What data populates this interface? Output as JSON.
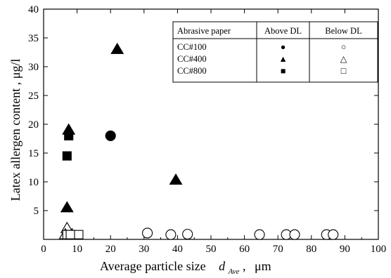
{
  "chart_data": {
    "type": "scatter",
    "title": "",
    "xlabel": "Average particle size",
    "xlabel_symbol": "d",
    "xlabel_subscript": "Ave",
    "xlabel_unit": "μm",
    "ylabel": "Latex allergen content , μg/l",
    "xlim": [
      0,
      100
    ],
    "ylim": [
      0,
      40
    ],
    "x_ticks": [
      0,
      10,
      20,
      30,
      40,
      50,
      60,
      70,
      80,
      90,
      100
    ],
    "y_ticks": [
      5,
      10,
      15,
      20,
      25,
      30,
      35,
      40
    ],
    "grid": false,
    "legend": {
      "placement": "top-right",
      "headers": [
        "Abrasive paper",
        "Above DL",
        "Below DL"
      ],
      "rows": [
        {
          "label": "CC#100",
          "above_symbol": "●",
          "below_symbol": "○"
        },
        {
          "label": "CC#400",
          "above_symbol": "▲",
          "below_symbol": "△"
        },
        {
          "label": "CC#800",
          "above_symbol": "■",
          "below_symbol": "□"
        }
      ]
    },
    "series": [
      {
        "name": "CC#100 Above DL",
        "marker": "circle",
        "filled": true,
        "points": [
          [
            20,
            18
          ]
        ]
      },
      {
        "name": "CC#400 Above DL",
        "marker": "triangle",
        "filled": true,
        "points": [
          [
            22,
            33
          ],
          [
            7.5,
            19
          ],
          [
            7,
            5.5
          ],
          [
            39.5,
            10.3
          ]
        ]
      },
      {
        "name": "CC#800 Above DL",
        "marker": "square",
        "filled": true,
        "points": [
          [
            7.5,
            18
          ],
          [
            7,
            14.5
          ]
        ]
      },
      {
        "name": "CC#100 Below DL",
        "marker": "circle",
        "filled": false,
        "points": [
          [
            31,
            1.1
          ],
          [
            38,
            0.1
          ],
          [
            43,
            0.9
          ],
          [
            64.5,
            0.1
          ],
          [
            72.5,
            0.1
          ],
          [
            75,
            0.1
          ],
          [
            84.5,
            0.1
          ],
          [
            86.5,
            0.1
          ]
        ]
      },
      {
        "name": "CC#400 Below DL",
        "marker": "triangle",
        "filled": false,
        "points": [
          [
            7,
            1.9
          ],
          [
            6.5,
            0.1
          ],
          [
            8.5,
            0.1
          ]
        ]
      },
      {
        "name": "CC#800 Below DL",
        "marker": "square",
        "filled": false,
        "points": [
          [
            7,
            0.1
          ],
          [
            8,
            0.1
          ],
          [
            10.5,
            0.1
          ]
        ]
      }
    ]
  }
}
